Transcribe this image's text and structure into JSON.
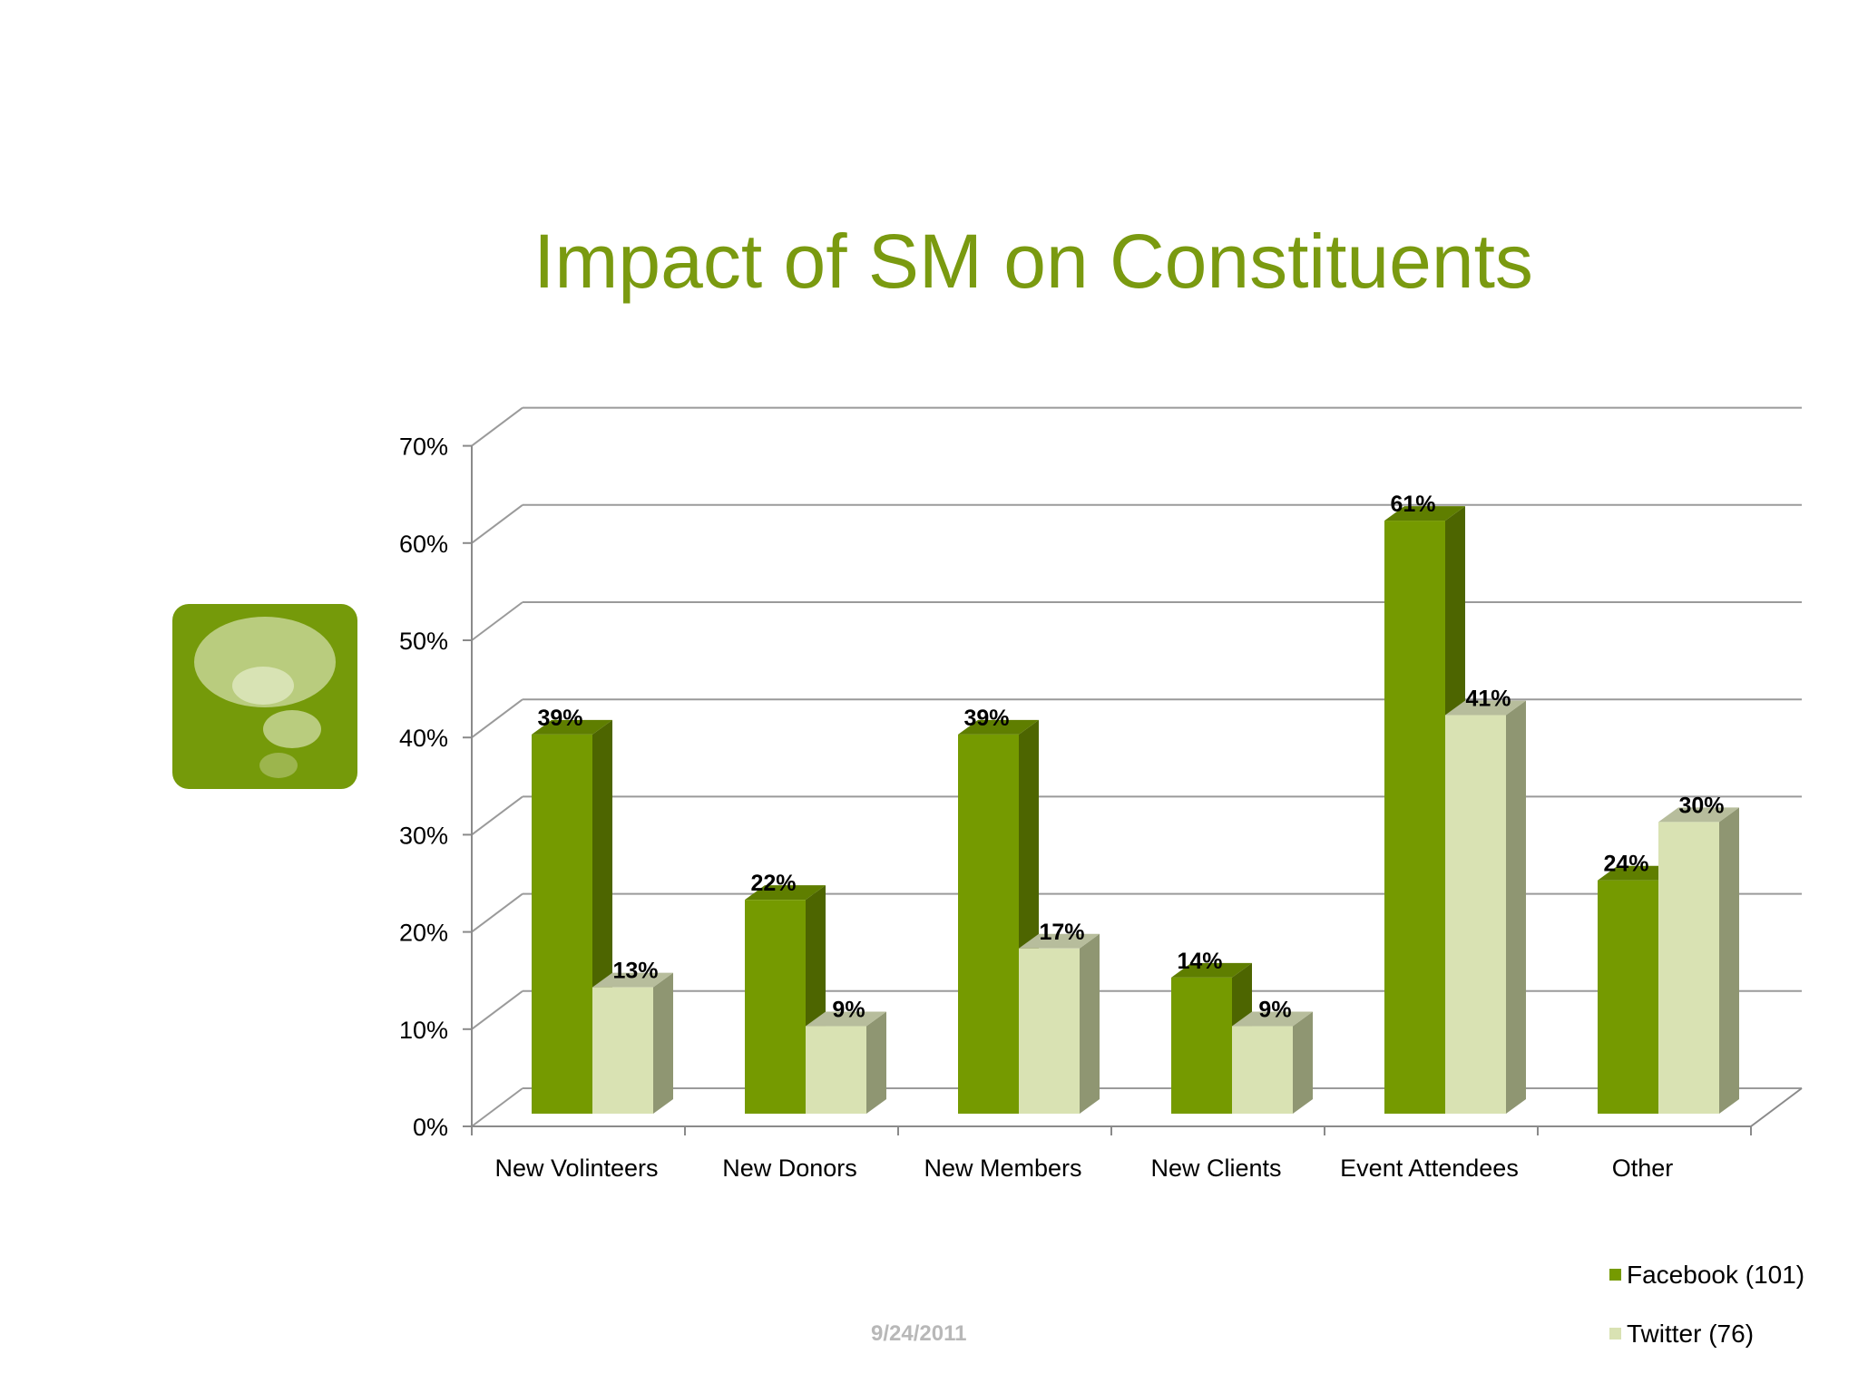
{
  "slide": {
    "date": "9/24/2011"
  },
  "colors": {
    "title": "#7a9a10",
    "facebook_front": "#759a00",
    "facebook_side": "#4d6500",
    "facebook_top": "#5f7e00",
    "twitter_front": "#d9e2b3",
    "twitter_side": "#8f9672",
    "twitter_top": "#b7bd9c",
    "logo_bg": "#759a0a"
  },
  "icons": {
    "logo": "thought-bubble-icon"
  },
  "chart_data": {
    "type": "bar",
    "title": "Impact of SM on Constituents",
    "categories": [
      "New Volinteers",
      "New Donors",
      "New Members",
      "New Clients",
      "Event Attendees",
      "Other"
    ],
    "series": [
      {
        "name": "Facebook (101)",
        "values": [
          39,
          22,
          39,
          14,
          61,
          24
        ],
        "labels": [
          "39%",
          "22%",
          "39%",
          "14%",
          "61%",
          "24%"
        ]
      },
      {
        "name": "Twitter (76)",
        "values": [
          13,
          9,
          17,
          9,
          41,
          30
        ],
        "labels": [
          "13%",
          "9%",
          "17%",
          "9%",
          "41%",
          "30%"
        ]
      }
    ],
    "yticks": [
      "0%",
      "10%",
      "20%",
      "30%",
      "40%",
      "50%",
      "60%",
      "70%"
    ],
    "ylim": [
      0,
      70
    ],
    "ystep": 10,
    "grid": true,
    "legend_position": "bottom-right",
    "style": "3d-clustered-column"
  }
}
